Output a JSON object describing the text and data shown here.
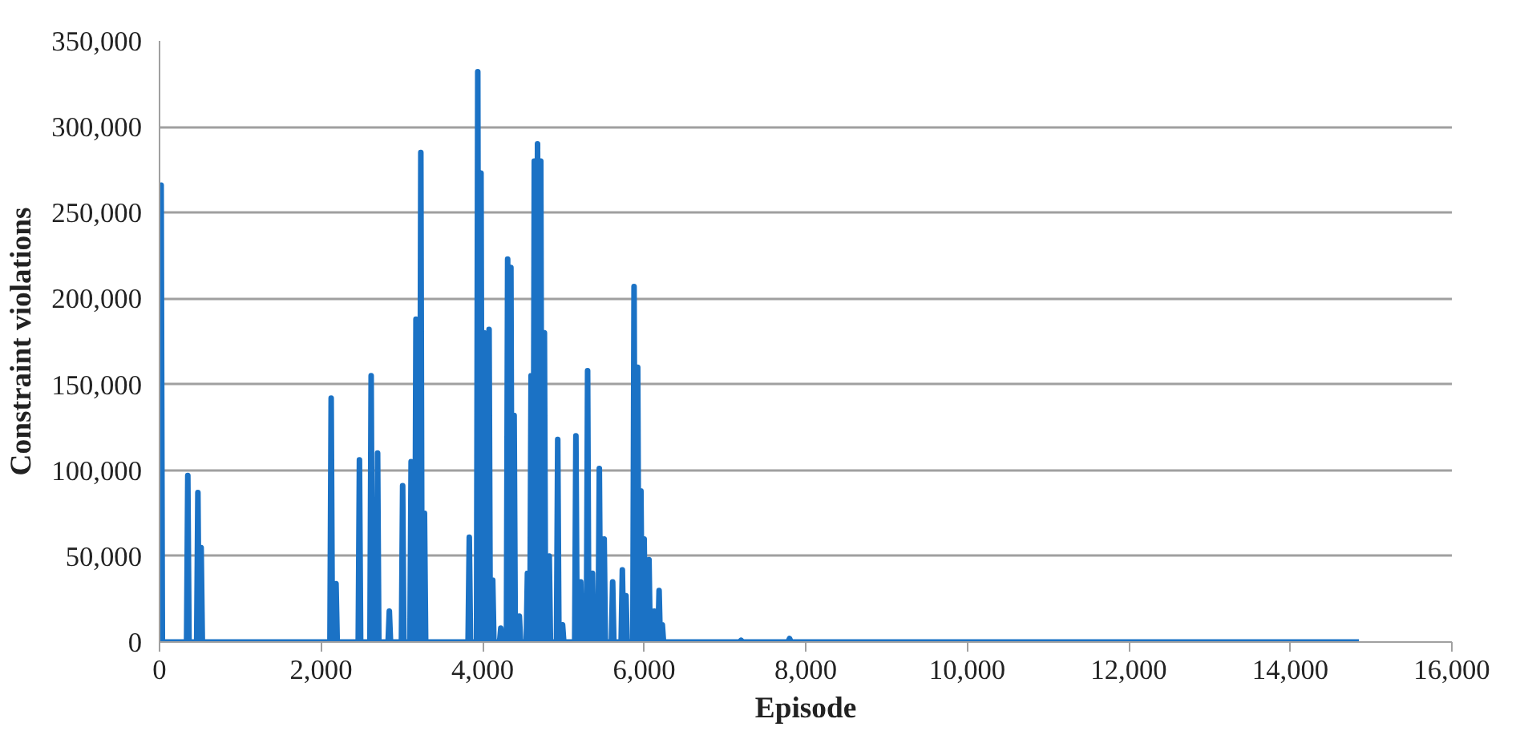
{
  "chart_data": {
    "type": "line",
    "xlabel": "Episode",
    "ylabel": "Constraint violations",
    "xlim": [
      0,
      16000
    ],
    "xticks": [
      {
        "value": 0,
        "label": "0"
      },
      {
        "value": 2000,
        "label": "2,000"
      },
      {
        "value": 4000,
        "label": "4,000"
      },
      {
        "value": 6000,
        "label": "6,000"
      },
      {
        "value": 8000,
        "label": "8,000"
      },
      {
        "value": 10000,
        "label": "10,000"
      },
      {
        "value": 12000,
        "label": "12,000"
      },
      {
        "value": 14000,
        "label": "14,000"
      },
      {
        "value": 16000,
        "label": "16,000"
      }
    ],
    "ylim": [
      0,
      350000
    ],
    "yticks": [
      {
        "value": 0,
        "label": "0"
      },
      {
        "value": 50000,
        "label": "50,000"
      },
      {
        "value": 100000,
        "label": "100,000"
      },
      {
        "value": 150000,
        "label": "150,000"
      },
      {
        "value": 200000,
        "label": "200,000"
      },
      {
        "value": 250000,
        "label": "250,000"
      },
      {
        "value": 300000,
        "label": "300,000"
      },
      {
        "value": 350000,
        "label": "350,000"
      }
    ],
    "grid": "y",
    "marker": "none",
    "line_style": "solid",
    "series": [
      {
        "color": "#1b72c5",
        "x": [
          0,
          20,
          35,
          335,
          350,
          365,
          460,
          475,
          490,
          500,
          515,
          530,
          2110,
          2125,
          2140,
          2170,
          2185,
          2200,
          2460,
          2475,
          2490,
          2605,
          2620,
          2635,
          2685,
          2700,
          2715,
          2830,
          2845,
          2860,
          2995,
          3010,
          3025,
          3100,
          3115,
          3130,
          3160,
          3175,
          3190,
          3220,
          3235,
          3250,
          3265,
          3280,
          3295,
          3820,
          3835,
          3850,
          3925,
          3940,
          3955,
          3965,
          3980,
          3995,
          4005,
          4020,
          4035,
          4065,
          4080,
          4095,
          4110,
          4125,
          4140,
          4210,
          4225,
          4240,
          4295,
          4310,
          4325,
          4335,
          4350,
          4365,
          4375,
          4390,
          4405,
          4440,
          4455,
          4470,
          4540,
          4555,
          4570,
          4585,
          4600,
          4615,
          4625,
          4640,
          4655,
          4665,
          4680,
          4695,
          4705,
          4720,
          4735,
          4750,
          4765,
          4780,
          4810,
          4825,
          4840,
          4915,
          4930,
          4945,
          4975,
          4990,
          5005,
          5140,
          5155,
          5170,
          5200,
          5215,
          5230,
          5285,
          5300,
          5315,
          5345,
          5360,
          5375,
          5430,
          5445,
          5460,
          5490,
          5505,
          5520,
          5595,
          5610,
          5625,
          5715,
          5730,
          5745,
          5760,
          5775,
          5790,
          5860,
          5875,
          5890,
          5905,
          5920,
          5935,
          5945,
          5960,
          5975,
          5985,
          6000,
          6015,
          6045,
          6060,
          6075,
          6110,
          6125,
          6140,
          6170,
          6185,
          6200,
          6210,
          6225,
          6240,
          7180,
          7200,
          7220,
          7780,
          7800,
          7820,
          14850
        ],
        "values": [
          0,
          266000,
          0,
          0,
          97000,
          0,
          0,
          87000,
          0,
          0,
          55000,
          0,
          0,
          142000,
          0,
          0,
          34000,
          0,
          0,
          106000,
          0,
          0,
          155000,
          0,
          0,
          110000,
          0,
          0,
          18000,
          0,
          0,
          91000,
          0,
          0,
          105000,
          0,
          0,
          188000,
          0,
          0,
          285000,
          0,
          0,
          75000,
          0,
          0,
          61000,
          0,
          0,
          332000,
          0,
          0,
          273000,
          0,
          0,
          180000,
          0,
          0,
          182000,
          0,
          0,
          36000,
          0,
          0,
          8000,
          0,
          0,
          223000,
          0,
          0,
          218000,
          0,
          0,
          132000,
          0,
          0,
          15000,
          0,
          0,
          40000,
          0,
          0,
          155000,
          0,
          0,
          280000,
          0,
          0,
          290000,
          0,
          0,
          280000,
          0,
          0,
          180000,
          0,
          0,
          50000,
          0,
          0,
          118000,
          0,
          0,
          10000,
          0,
          0,
          120000,
          0,
          0,
          35000,
          0,
          0,
          158000,
          0,
          0,
          40000,
          0,
          0,
          101000,
          0,
          0,
          60000,
          0,
          0,
          35000,
          0,
          0,
          42000,
          0,
          0,
          27000,
          0,
          0,
          207000,
          0,
          0,
          160000,
          0,
          0,
          88000,
          0,
          0,
          60000,
          0,
          0,
          48000,
          0,
          0,
          18000,
          0,
          0,
          30000,
          0,
          0,
          10000,
          0,
          0,
          1000,
          0,
          0,
          2000,
          0,
          0
        ]
      }
    ]
  }
}
